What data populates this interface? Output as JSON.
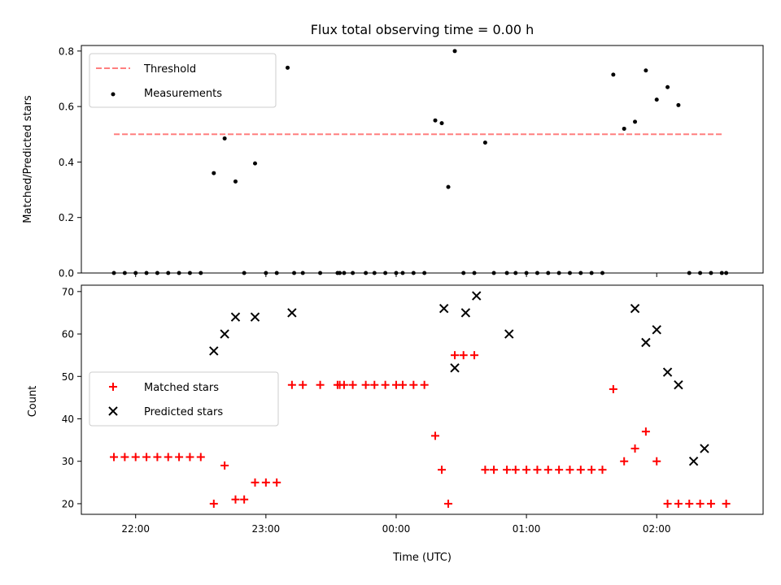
{
  "chart_data": [
    {
      "type": "scatter",
      "title": "Flux total observing time = 0.00 h",
      "xlabel": "",
      "ylabel": "Matched/Predicted stars",
      "ylim": [
        0,
        0.82
      ],
      "yticks": [
        0.0,
        0.2,
        0.4,
        0.6,
        0.8
      ],
      "ytick_labels": [
        "0.0",
        "0.2",
        "0.4",
        "0.6",
        "0.8"
      ],
      "xlim": [
        "21:35",
        "02:49"
      ],
      "xticks": [
        "22:00",
        "23:00",
        "00:00",
        "01:00",
        "02:00"
      ],
      "legend": "top-left",
      "threshold": {
        "name": "Threshold",
        "value": 0.5,
        "x": [
          "21:50",
          "02:30"
        ],
        "color": "#ff7f7f",
        "style": "dashed"
      },
      "series": [
        {
          "name": "Measurements",
          "color": "#000000",
          "marker": "dot",
          "x": [
            "21:50",
            "21:55",
            "22:00",
            "22:05",
            "22:10",
            "22:15",
            "22:20",
            "22:25",
            "22:30",
            "22:36",
            "22:41",
            "22:46",
            "22:50",
            "22:55",
            "23:00",
            "23:05",
            "23:10",
            "23:13",
            "23:17",
            "23:25",
            "23:33",
            "23:34",
            "23:36",
            "23:40",
            "23:46",
            "23:50",
            "23:55",
            "24:00",
            "24:03",
            "24:08",
            "24:13",
            "24:18",
            "24:21",
            "24:24",
            "24:27",
            "24:31",
            "24:36",
            "24:41",
            "24:45",
            "24:51",
            "24:55",
            "25:00",
            "25:05",
            "25:10",
            "25:15",
            "25:20",
            "25:25",
            "25:30",
            "25:35",
            "25:40",
            "25:45",
            "25:50",
            "25:55",
            "26:00",
            "26:05",
            "26:10",
            "26:15",
            "26:20",
            "26:25",
            "26:30",
            "26:32"
          ],
          "y": [
            0,
            0,
            0,
            0,
            0,
            0,
            0,
            0,
            0,
            0.36,
            0.485,
            0.33,
            0,
            0.395,
            0,
            0,
            0.74,
            0,
            0,
            0,
            0,
            0,
            0,
            0,
            0,
            0,
            0,
            0,
            0,
            0,
            0,
            0.55,
            0.54,
            0.31,
            0.8,
            0,
            0,
            0.47,
            0,
            0,
            0,
            0,
            0,
            0,
            0,
            0,
            0,
            0,
            0,
            0.715,
            0.52,
            0.545,
            0.73,
            0.625,
            0.67,
            0.605,
            0,
            0,
            0,
            0,
            0
          ]
        }
      ]
    },
    {
      "type": "scatter",
      "xlabel": "Time (UTC)",
      "ylabel": "Count",
      "ylim": [
        17.5,
        71.5
      ],
      "yticks": [
        20,
        30,
        40,
        50,
        60,
        70
      ],
      "ytick_labels": [
        "20",
        "30",
        "40",
        "50",
        "60",
        "70"
      ],
      "xlim": [
        "21:35",
        "02:49"
      ],
      "xticks": [
        "22:00",
        "23:00",
        "00:00",
        "01:00",
        "02:00"
      ],
      "xtick_labels": [
        "22:00",
        "23:00",
        "00:00",
        "01:00",
        "02:00"
      ],
      "legend": "center-left",
      "series": [
        {
          "name": "Matched stars",
          "color": "#ff0000",
          "marker": "plus",
          "x": [
            "21:50",
            "21:55",
            "22:00",
            "22:05",
            "22:10",
            "22:15",
            "22:20",
            "22:25",
            "22:30",
            "22:36",
            "22:41",
            "22:46",
            "22:50",
            "22:55",
            "23:00",
            "23:05",
            "23:12",
            "23:17",
            "23:25",
            "23:33",
            "23:34",
            "23:36",
            "23:40",
            "23:46",
            "23:50",
            "23:55",
            "24:00",
            "24:03",
            "24:08",
            "24:13",
            "24:18",
            "24:21",
            "24:24",
            "24:27",
            "24:31",
            "24:36",
            "24:41",
            "24:45",
            "24:51",
            "24:55",
            "25:00",
            "25:05",
            "25:10",
            "25:15",
            "25:20",
            "25:25",
            "25:30",
            "25:35",
            "25:40",
            "25:45",
            "25:50",
            "25:55",
            "26:00",
            "26:05",
            "26:10",
            "26:15",
            "26:20",
            "26:25",
            "26:32"
          ],
          "y": [
            31,
            31,
            31,
            31,
            31,
            31,
            31,
            31,
            31,
            20,
            29,
            21,
            21,
            25,
            25,
            25,
            48,
            48,
            48,
            48,
            48,
            48,
            48,
            48,
            48,
            48,
            48,
            48,
            48,
            48,
            36,
            28,
            20,
            55,
            55,
            55,
            28,
            28,
            28,
            28,
            28,
            28,
            28,
            28,
            28,
            28,
            28,
            28,
            47,
            30,
            33,
            37,
            30,
            20,
            20,
            20,
            20,
            20,
            20
          ]
        },
        {
          "name": "Predicted stars",
          "color": "#000000",
          "marker": "x",
          "x": [
            "22:36",
            "22:41",
            "22:46",
            "22:55",
            "23:12",
            "24:22",
            "24:27",
            "24:32",
            "24:37",
            "24:52",
            "25:50",
            "25:55",
            "26:00",
            "26:05",
            "26:10",
            "26:17",
            "26:22"
          ],
          "y": [
            56,
            60,
            64,
            64,
            65,
            66,
            52,
            65,
            69,
            60,
            66,
            58,
            61,
            51,
            48,
            30,
            33
          ]
        }
      ]
    }
  ]
}
